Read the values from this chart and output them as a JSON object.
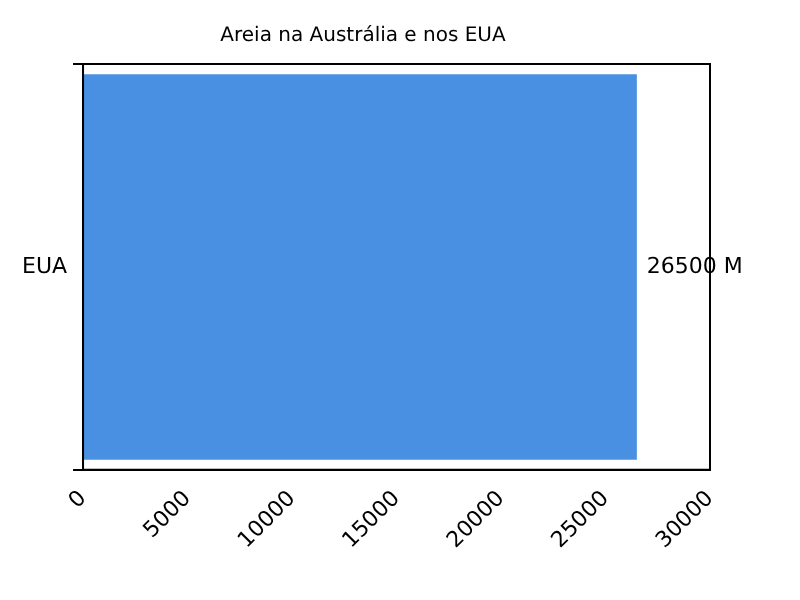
{
  "chart_data": {
    "type": "bar",
    "title": "Areia na Austrália e nos EUA",
    "orientation": "horizontal",
    "categories": [
      "EUA"
    ],
    "values": [
      26500
    ],
    "value_labels": [
      "26500 M"
    ],
    "color": "#4a90e2",
    "xlim": [
      0,
      30000
    ],
    "xticks": [
      0,
      5000,
      10000,
      15000,
      20000,
      25000,
      30000
    ]
  }
}
